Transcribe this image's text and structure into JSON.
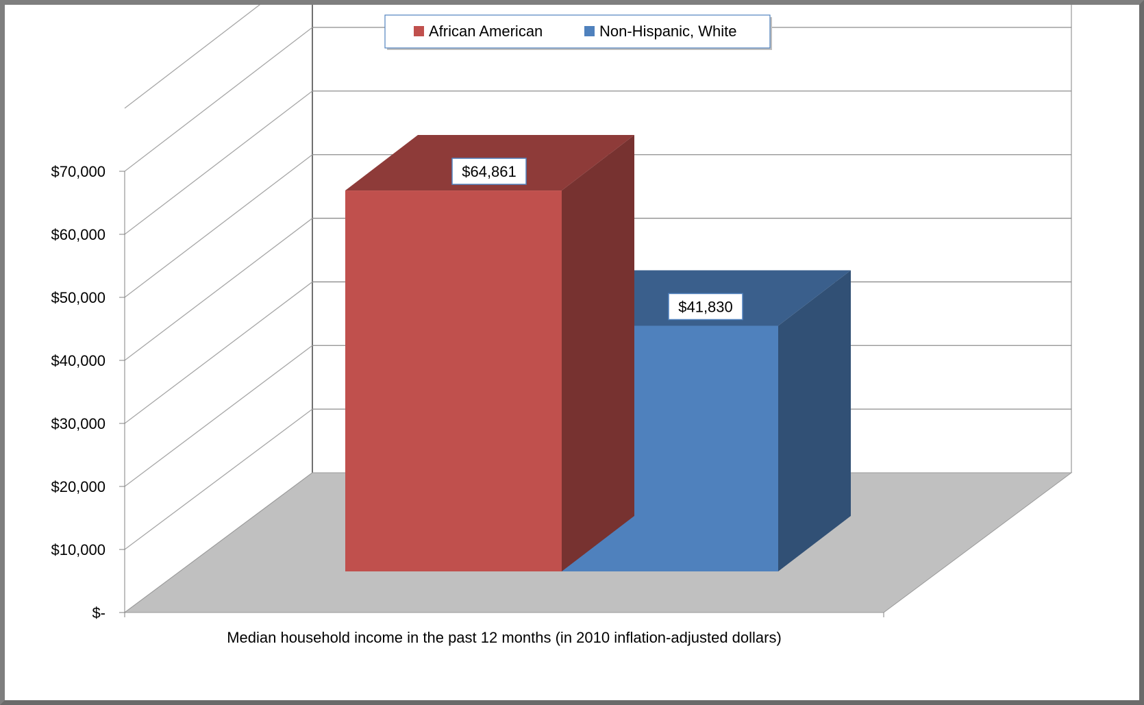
{
  "chart_data": {
    "type": "bar",
    "categories": [
      "Median household income in the past 12 months (in 2010 inflation-adjusted dollars)"
    ],
    "series": [
      {
        "name": "African American",
        "values": [
          64861
        ],
        "color": "#c0504d",
        "data_label": "$64,861"
      },
      {
        "name": "Non-Hispanic, White",
        "values": [
          41830
        ],
        "color": "#4f81bd",
        "data_label": "$41,830"
      }
    ],
    "yticks": [
      {
        "value": 0,
        "label": "$-"
      },
      {
        "value": 10000,
        "label": "$10,000"
      },
      {
        "value": 20000,
        "label": "$20,000"
      },
      {
        "value": 30000,
        "label": "$30,000"
      },
      {
        "value": 40000,
        "label": "$40,000"
      },
      {
        "value": 50000,
        "label": "$50,000"
      },
      {
        "value": 60000,
        "label": "$60,000"
      },
      {
        "value": 70000,
        "label": "$70,000"
      }
    ],
    "ylim": [
      0,
      70000
    ],
    "xlabel": "Median household income in the past 12 months (in 2010 inflation-adjusted dollars)",
    "ylabel": "",
    "title": "",
    "grid": true,
    "legend_position": "top-center",
    "style": "3d-column",
    "floor_color": "#c0c0c0"
  }
}
